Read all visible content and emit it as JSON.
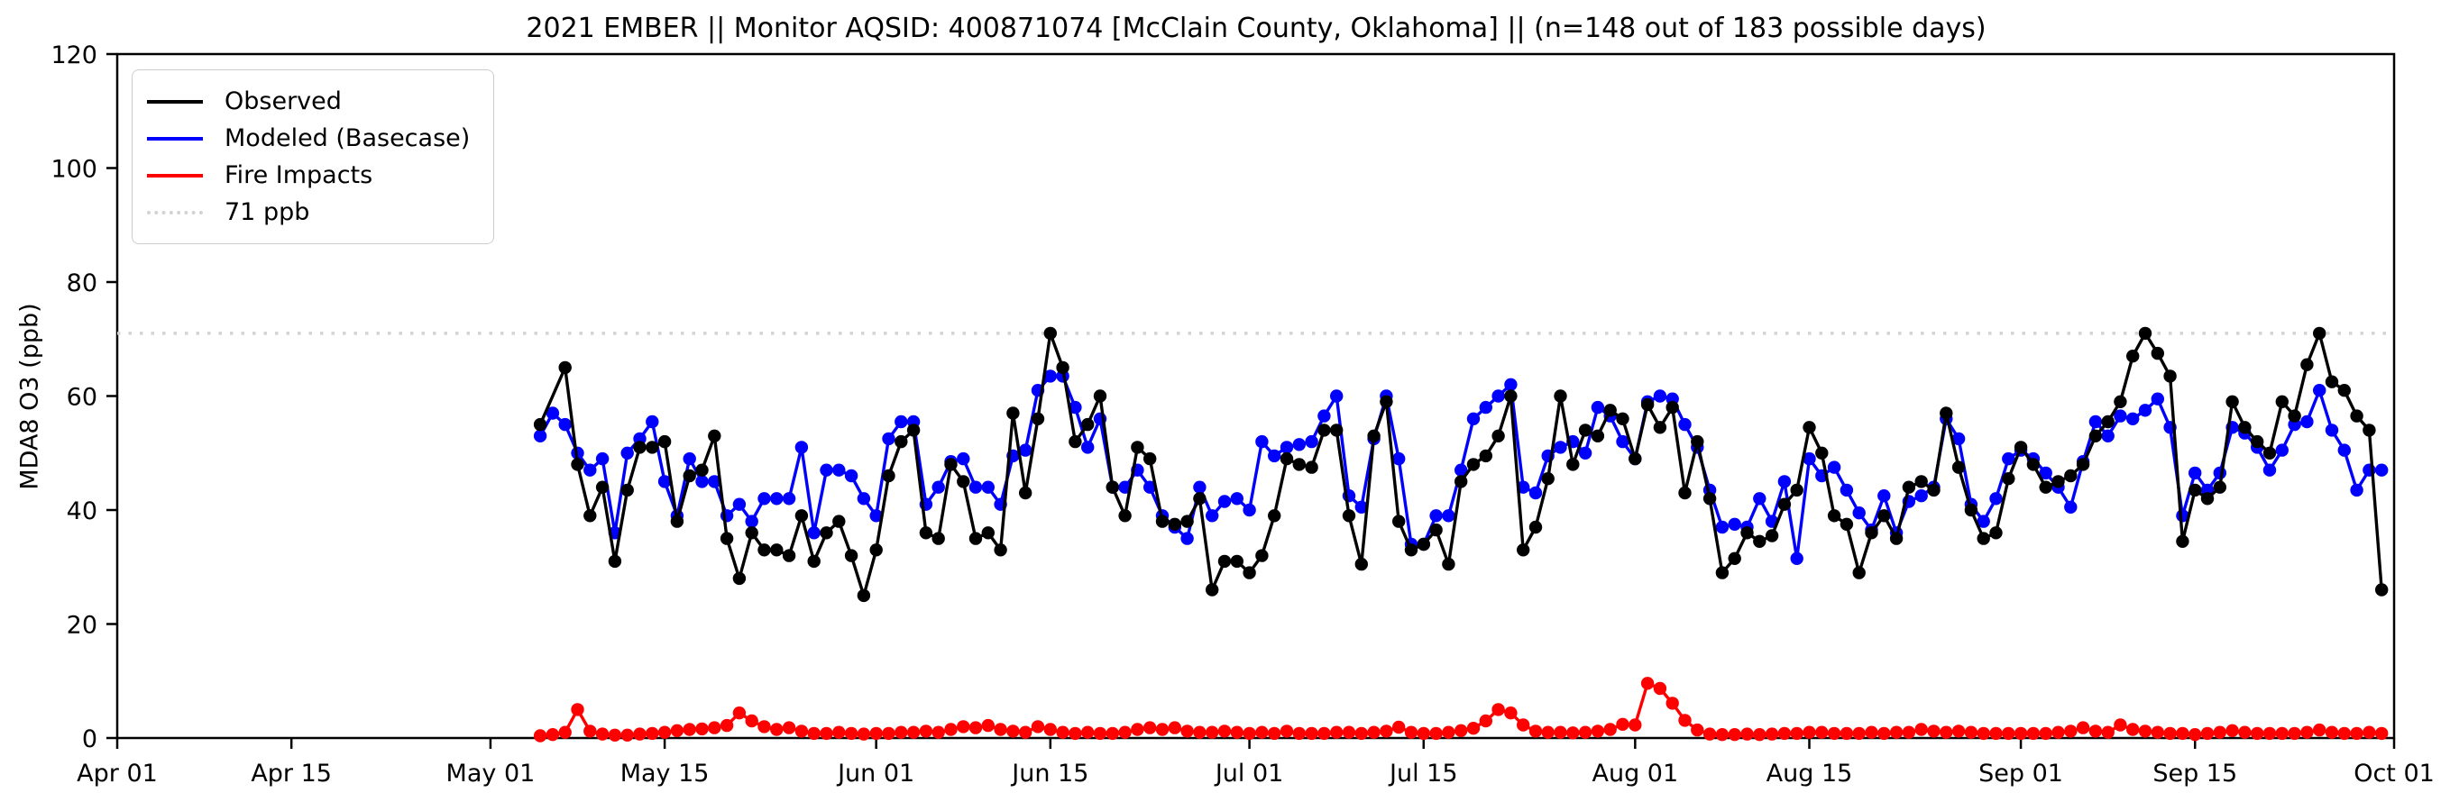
{
  "title": "2021 EMBER || Monitor AQSID: 400871074 [McClain County, Oklahoma] || (n=148 out of 183 possible days)",
  "y_axis": {
    "label": "MDA8 O3 (ppb)",
    "ticks": [
      0,
      20,
      40,
      60,
      80,
      100,
      120
    ],
    "range": [
      0,
      120
    ]
  },
  "x_axis": {
    "range_days": [
      0,
      183
    ],
    "ticks": [
      {
        "label": "Apr 01",
        "day": 0
      },
      {
        "label": "Apr 15",
        "day": 14
      },
      {
        "label": "May 01",
        "day": 30
      },
      {
        "label": "May 15",
        "day": 44
      },
      {
        "label": "Jun 01",
        "day": 61
      },
      {
        "label": "Jun 15",
        "day": 75
      },
      {
        "label": "Jul 01",
        "day": 91
      },
      {
        "label": "Jul 15",
        "day": 105
      },
      {
        "label": "Aug 01",
        "day": 122
      },
      {
        "label": "Aug 15",
        "day": 136
      },
      {
        "label": "Sep 01",
        "day": 153
      },
      {
        "label": "Sep 15",
        "day": 167
      },
      {
        "label": "Oct 01",
        "day": 183
      }
    ]
  },
  "legend": {
    "items": [
      {
        "label": "Observed",
        "color": "#000000",
        "style": "solid"
      },
      {
        "label": "Modeled (Basecase)",
        "color": "#0000ff",
        "style": "solid"
      },
      {
        "label": "Fire Impacts",
        "color": "#ff0000",
        "style": "solid"
      },
      {
        "label": "71 ppb",
        "color": "#d3d3d3",
        "style": "dotted"
      }
    ]
  },
  "chart_data": {
    "type": "line",
    "title": "2021 EMBER || Monitor AQSID: 400871074 [McClain County, Oklahoma] || (n=148 out of 183 possible days)",
    "xlabel": "",
    "ylabel": "MDA8 O3 (ppb)",
    "ylim": [
      0,
      120
    ],
    "x_range": "Apr 01 - Oct 01 (183 days)",
    "data_start_date": "May 05",
    "data_end_date": "Sep 30",
    "start_day_offset_from_apr01": 34,
    "reference_line": {
      "value": 71,
      "label": "71 ppb",
      "color": "#d3d3d3"
    },
    "legend_position": "upper left",
    "grid": false,
    "series": [
      {
        "name": "Observed",
        "color": "#000000",
        "values": [
          55,
          null,
          65,
          48,
          39,
          44,
          31,
          43.5,
          51,
          51,
          52,
          38,
          46,
          47,
          53,
          35,
          28,
          36,
          33,
          33,
          32,
          39,
          31,
          36,
          38,
          32,
          25,
          33,
          46,
          52,
          54,
          36,
          35,
          48,
          45,
          35,
          36,
          33,
          57,
          43,
          56,
          71,
          65,
          52,
          55,
          60,
          44,
          39,
          51,
          49,
          38,
          37.5,
          38,
          42,
          26,
          31,
          31,
          29,
          32,
          39,
          49,
          48,
          47.5,
          54,
          54,
          39,
          30.5,
          53,
          59,
          38,
          33,
          34,
          36.5,
          30.5,
          45,
          48,
          49.5,
          53,
          60,
          33,
          37,
          45.5,
          60,
          48,
          54,
          53,
          57.5,
          56,
          49,
          58.5,
          54.5,
          58,
          43,
          52,
          42,
          29,
          31.5,
          36,
          34.5,
          35.5,
          41,
          43.5,
          54.5,
          50,
          39,
          37.5,
          29,
          36,
          39,
          35,
          44,
          45,
          43.5,
          57,
          47.5,
          40,
          35,
          36,
          45.5,
          51,
          48,
          44,
          45,
          46,
          48,
          53,
          55.5,
          59,
          67,
          71,
          67.5,
          63.5,
          34.5,
          43.5,
          42,
          44,
          59,
          54.5,
          52,
          50,
          59,
          56.5,
          65.5,
          71,
          62.5,
          61,
          56.5,
          54,
          26
        ]
      },
      {
        "name": "Modeled (Basecase)",
        "color": "#0000ff",
        "values": [
          53,
          57,
          55,
          50,
          47,
          49,
          36,
          50,
          52.5,
          55.5,
          45,
          39,
          49,
          45,
          45,
          39,
          41,
          38,
          42,
          42,
          42,
          51,
          36,
          47,
          47,
          46,
          42,
          39,
          52.5,
          55.5,
          55.5,
          41,
          44,
          48.5,
          49,
          44,
          44,
          41,
          49.5,
          50.5,
          61,
          63.5,
          63.5,
          58,
          51,
          56,
          44,
          44,
          47,
          44,
          39,
          37,
          35,
          44,
          39,
          41.5,
          42,
          40,
          52,
          49.5,
          51,
          51.5,
          52,
          56.5,
          60,
          42.5,
          40.5,
          52.5,
          60,
          49,
          34,
          34,
          39,
          39,
          47,
          56,
          58,
          60,
          62,
          44,
          43,
          49.5,
          51,
          52,
          50,
          58,
          56.5,
          52,
          49,
          59,
          60,
          59.5,
          55,
          51,
          43.5,
          37,
          37.5,
          37,
          42,
          38,
          45,
          31.5,
          49,
          46,
          47.5,
          43.5,
          39.5,
          36.5,
          42.5,
          36,
          41.5,
          42.5,
          44,
          56,
          52.5,
          41,
          38,
          42,
          49,
          50.5,
          49,
          46.5,
          44,
          40.5,
          48.5,
          55.5,
          53,
          56.5,
          56,
          57.5,
          59.5,
          54.5,
          39,
          46.5,
          43.5,
          46.5,
          54.5,
          53.5,
          51,
          47,
          50.5,
          55,
          55.5,
          61,
          54,
          50.5,
          43.5,
          47,
          47
        ]
      },
      {
        "name": "Fire Impacts",
        "color": "#ff0000",
        "values": [
          0.4,
          0.6,
          1,
          5,
          1.2,
          0.7,
          0.5,
          0.5,
          0.7,
          0.8,
          1,
          1.3,
          1.5,
          1.6,
          1.8,
          2.2,
          4.4,
          3,
          2,
          1.5,
          1.8,
          1.2,
          0.8,
          0.8,
          1,
          0.8,
          0.7,
          0.8,
          0.8,
          1,
          1,
          1.2,
          1,
          1.5,
          2,
          1.8,
          2.2,
          1.5,
          1.2,
          1,
          2,
          1.5,
          1,
          0.8,
          1,
          0.8,
          0.8,
          1,
          1.5,
          1.8,
          1.5,
          1.8,
          1.2,
          1,
          1,
          1.2,
          1,
          0.8,
          1,
          0.8,
          1.2,
          0.8,
          0.8,
          0.8,
          1,
          1,
          0.8,
          1,
          1.2,
          1.9,
          1,
          0.8,
          0.8,
          1,
          1.3,
          1.7,
          3,
          5,
          4.4,
          2.3,
          1.2,
          1,
          1,
          0.9,
          1,
          1.2,
          1.5,
          2.4,
          2.3,
          9.6,
          8.7,
          6.1,
          3.1,
          1.4,
          0.7,
          0.6,
          0.6,
          0.7,
          0.6,
          0.7,
          0.8,
          0.8,
          1,
          1,
          0.8,
          0.8,
          0.8,
          1,
          0.8,
          1,
          1,
          1.5,
          1.2,
          1,
          1.2,
          1,
          0.8,
          0.8,
          0.8,
          0.8,
          0.8,
          0.8,
          1,
          1.2,
          1.8,
          1.2,
          1,
          2.3,
          1.5,
          1.2,
          1,
          0.8,
          0.8,
          0.6,
          0.8,
          1,
          1.3,
          1,
          0.8,
          0.8,
          0.8,
          0.8,
          1,
          1.4,
          1,
          0.8,
          0.8,
          1,
          0.8
        ]
      }
    ]
  }
}
